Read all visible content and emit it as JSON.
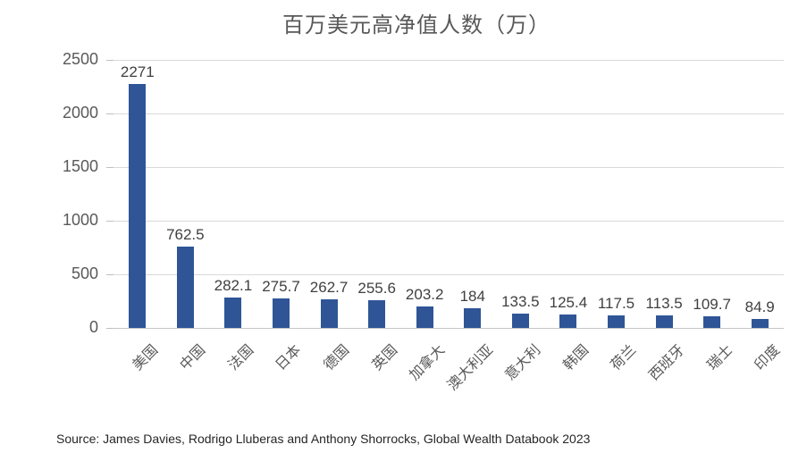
{
  "page": {
    "source": "Source: James Davies, Rodrigo Lluberas and Anthony Shorrocks, Global Wealth Databook 2023"
  },
  "chart_data": {
    "type": "bar",
    "title": "百万美元高净值人数（万）",
    "categories": [
      "美国",
      "中国",
      "法国",
      "日本",
      "德国",
      "英国",
      "加拿大",
      "澳大利亚",
      "意大利",
      "韩国",
      "荷兰",
      "西班牙",
      "瑞士",
      "印度"
    ],
    "values": [
      2271,
      762.5,
      282.1,
      275.7,
      262.7,
      255.6,
      203.2,
      184,
      133.5,
      125.4,
      117.5,
      113.5,
      109.7,
      84.9
    ],
    "data_labels": [
      "2271",
      "762.5",
      "282.1",
      "275.7",
      "262.7",
      "255.6",
      "203.2",
      "184",
      "133.5",
      "125.4",
      "117.5",
      "113.5",
      "109.7",
      "84.9"
    ],
    "xlabel": "",
    "ylabel": "",
    "ylim": [
      0,
      2500
    ],
    "y_ticks": [
      0,
      500,
      1000,
      1500,
      2000,
      2500
    ],
    "grid": true,
    "legend": "none",
    "bar_color": "#2f5597",
    "gridline_color": "#d9d9d9",
    "x_label_rotation": -45
  }
}
